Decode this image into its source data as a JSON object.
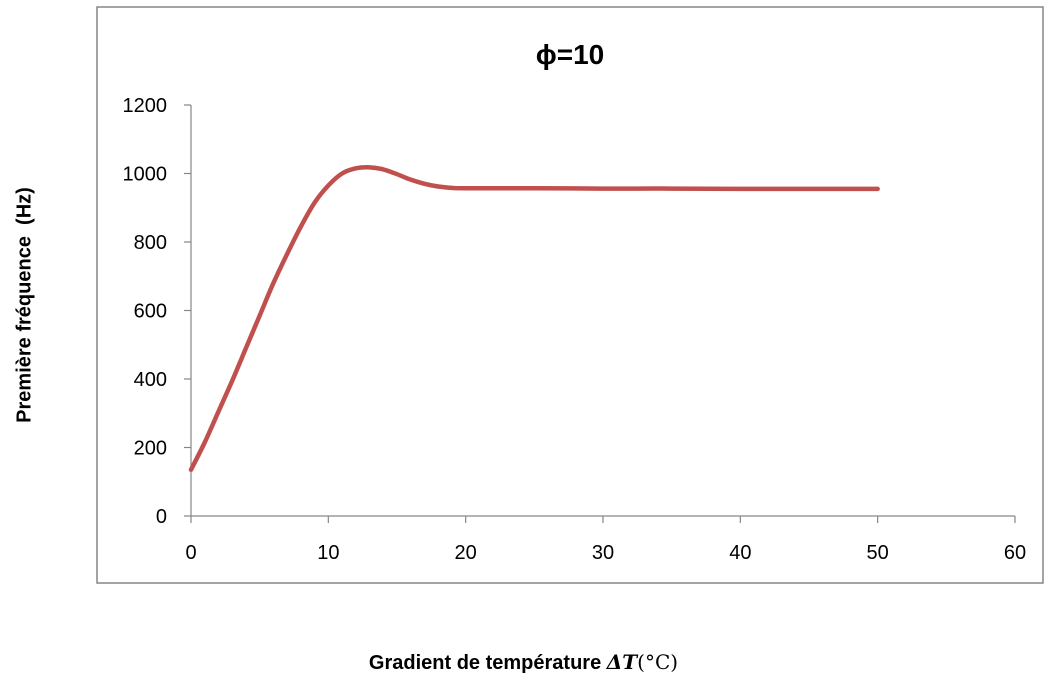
{
  "chart_data": {
    "type": "line",
    "title": "ϕ=10",
    "ylabel": "Première fréquence  (Hz)",
    "xlabel": {
      "text": "Gradient de température ",
      "symbol": "ΔT",
      "unit": "(°C)"
    },
    "xlim": [
      0,
      60
    ],
    "ylim": [
      0,
      1200
    ],
    "xticks": [
      "0",
      "10",
      "20",
      "30",
      "40",
      "50",
      "60"
    ],
    "yticks": [
      "0",
      "200",
      "400",
      "600",
      "800",
      "1000",
      "1200"
    ],
    "grid": false,
    "legend": "none",
    "series": [
      {
        "color": "#C0504D",
        "x": [
          0,
          1,
          2,
          3,
          4,
          5,
          6,
          7,
          8,
          9,
          10,
          11,
          12,
          13,
          14,
          15,
          16,
          17,
          18,
          19,
          20,
          25,
          30,
          35,
          40,
          45,
          50
        ],
        "y": [
          135,
          215,
          305,
          395,
          490,
          585,
          680,
          765,
          845,
          915,
          965,
          1000,
          1015,
          1018,
          1012,
          998,
          982,
          970,
          962,
          958,
          957,
          957,
          956,
          956,
          955,
          955,
          955
        ]
      }
    ]
  }
}
